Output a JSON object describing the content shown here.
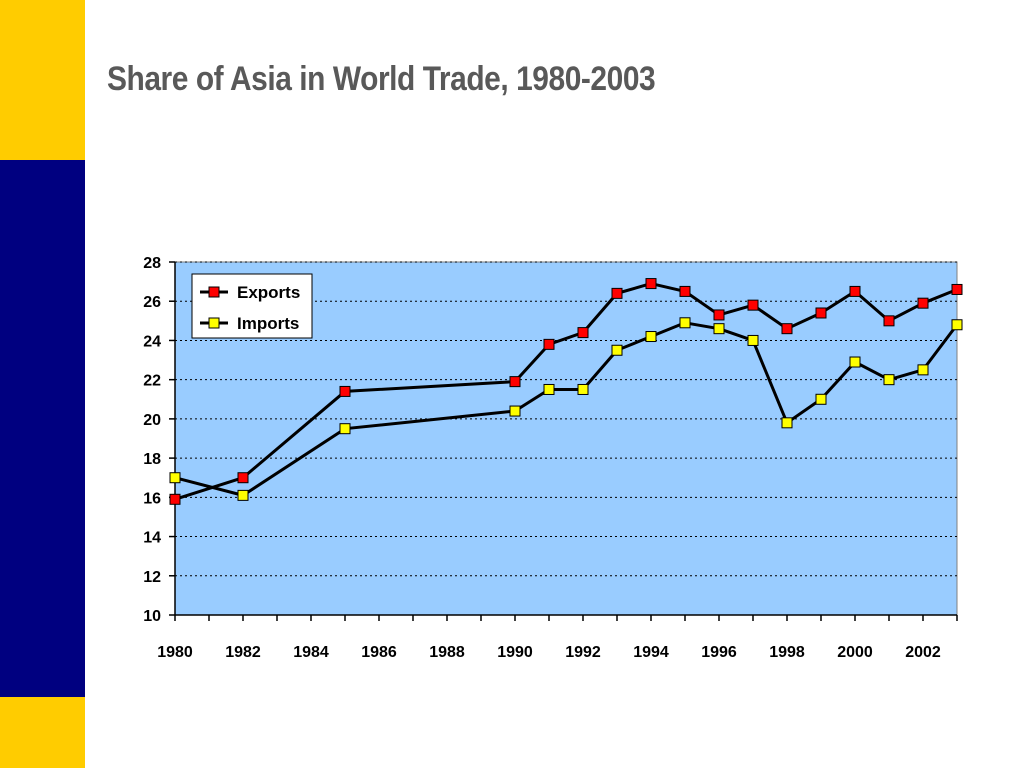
{
  "slide": {
    "title": "Share of Asia in World Trade, 1980-2003",
    "colors": {
      "bar_gold": "#ffcc00",
      "bar_navy": "#000080",
      "title": "#595959"
    }
  },
  "chart_data": {
    "type": "line",
    "title": "Share of Asia in World Trade, 1980-2003",
    "xlabel": "",
    "ylabel": "",
    "xlim": [
      1980,
      2003
    ],
    "ylim": [
      10,
      28
    ],
    "x_ticks": [
      1980,
      1982,
      1984,
      1986,
      1988,
      1990,
      1992,
      1994,
      1996,
      1998,
      2000,
      2002
    ],
    "y_ticks": [
      10,
      12,
      14,
      16,
      18,
      20,
      22,
      24,
      26,
      28
    ],
    "grid": "horizontal dotted",
    "legend_position": "top-left",
    "plot_background": "#99ccff",
    "series": [
      {
        "name": "Exports",
        "color": "#ff0000",
        "points": [
          {
            "x": 1980,
            "y": 15.9
          },
          {
            "x": 1982,
            "y": 17.0
          },
          {
            "x": 1985,
            "y": 21.4
          },
          {
            "x": 1990,
            "y": 21.9
          },
          {
            "x": 1991,
            "y": 23.8
          },
          {
            "x": 1992,
            "y": 24.4
          },
          {
            "x": 1993,
            "y": 26.4
          },
          {
            "x": 1994,
            "y": 26.9
          },
          {
            "x": 1995,
            "y": 26.5
          },
          {
            "x": 1996,
            "y": 25.3
          },
          {
            "x": 1997,
            "y": 25.8
          },
          {
            "x": 1998,
            "y": 24.6
          },
          {
            "x": 1999,
            "y": 25.4
          },
          {
            "x": 2000,
            "y": 26.5
          },
          {
            "x": 2001,
            "y": 25.0
          },
          {
            "x": 2002,
            "y": 25.9
          },
          {
            "x": 2003,
            "y": 26.6
          }
        ]
      },
      {
        "name": "Imports",
        "color": "#ffff00",
        "points": [
          {
            "x": 1980,
            "y": 17.0
          },
          {
            "x": 1982,
            "y": 16.1
          },
          {
            "x": 1985,
            "y": 19.5
          },
          {
            "x": 1990,
            "y": 20.4
          },
          {
            "x": 1991,
            "y": 21.5
          },
          {
            "x": 1992,
            "y": 21.5
          },
          {
            "x": 1993,
            "y": 23.5
          },
          {
            "x": 1994,
            "y": 24.2
          },
          {
            "x": 1995,
            "y": 24.9
          },
          {
            "x": 1996,
            "y": 24.6
          },
          {
            "x": 1997,
            "y": 24.0
          },
          {
            "x": 1998,
            "y": 19.8
          },
          {
            "x": 1999,
            "y": 21.0
          },
          {
            "x": 2000,
            "y": 22.9
          },
          {
            "x": 2001,
            "y": 22.0
          },
          {
            "x": 2002,
            "y": 22.5
          },
          {
            "x": 2003,
            "y": 24.8
          }
        ]
      }
    ]
  }
}
